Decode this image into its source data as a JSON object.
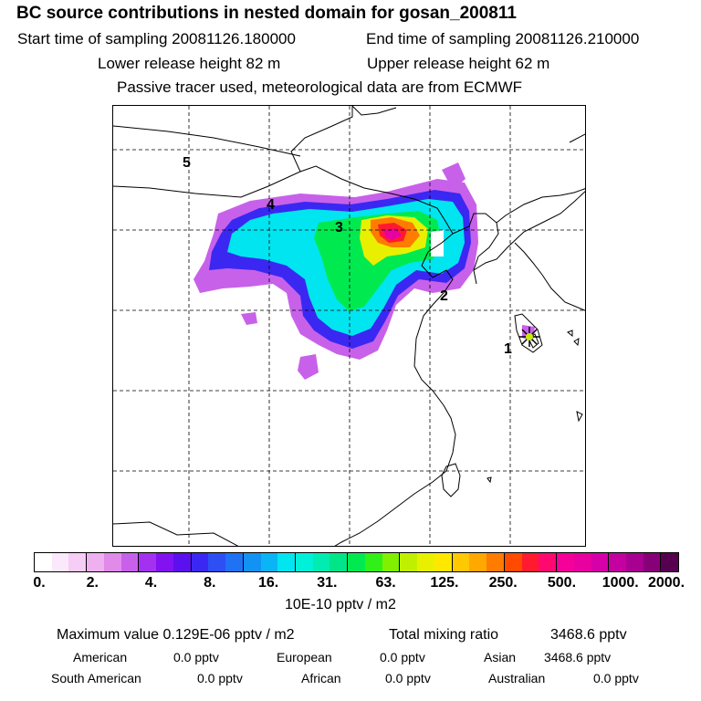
{
  "header": {
    "title": "BC  source contributions in nested domain for gosan_200811",
    "start_label": "Start time of sampling 20081126.180000",
    "end_label": "End time of sampling 20081126.210000",
    "lower_label": "Lower release height   82 m",
    "upper_label": "Upper release height   62 m",
    "tracer_note": "Passive tracer used, meteorological data are from ECMWF"
  },
  "map": {
    "site_markers": [
      "1",
      "2",
      "3",
      "4",
      "5"
    ],
    "receptor": "star-marker"
  },
  "colorbar": {
    "labels": [
      "0.",
      "2.",
      "4.",
      "8.",
      "16.",
      "31.",
      "63.",
      "125.",
      "250.",
      "500.",
      "1000.",
      "2000."
    ],
    "unit": "10E-10 pptv / m2",
    "colors": [
      "#ffffff",
      "#fbe8fb",
      "#f5cdf5",
      "#efb0ef",
      "#e08ae9",
      "#c861ea",
      "#a431ef",
      "#8212f0",
      "#5b10ee",
      "#3b27f2",
      "#2d4ff4",
      "#1f72f4",
      "#1293f4",
      "#0bb4f4",
      "#00e5f0",
      "#00f0d8",
      "#00ecb0",
      "#00e588",
      "#00ea50",
      "#30f018",
      "#80f000",
      "#c0f000",
      "#e8f000",
      "#ffe800",
      "#ffc800",
      "#ffa800",
      "#ff7c00",
      "#ff4a00",
      "#ff1a30",
      "#ff0870",
      "#f50098",
      "#e800a0",
      "#d600a8",
      "#c400a0",
      "#a80090",
      "#880078",
      "#580050"
    ]
  },
  "footer": {
    "max_label": "Maximum value  0.129E-06 pptv / m2",
    "total_label": "Total mixing ratio",
    "total_value": "3468.6 pptv",
    "regions": [
      {
        "name": "American",
        "value": "0.0 pptv"
      },
      {
        "name": "European",
        "value": "0.0 pptv"
      },
      {
        "name": "Asian",
        "value": "3468.6 pptv"
      },
      {
        "name": "South American",
        "value": "0.0 pptv"
      },
      {
        "name": "African",
        "value": "0.0 pptv"
      },
      {
        "name": "Australian",
        "value": "0.0 pptv"
      }
    ]
  }
}
